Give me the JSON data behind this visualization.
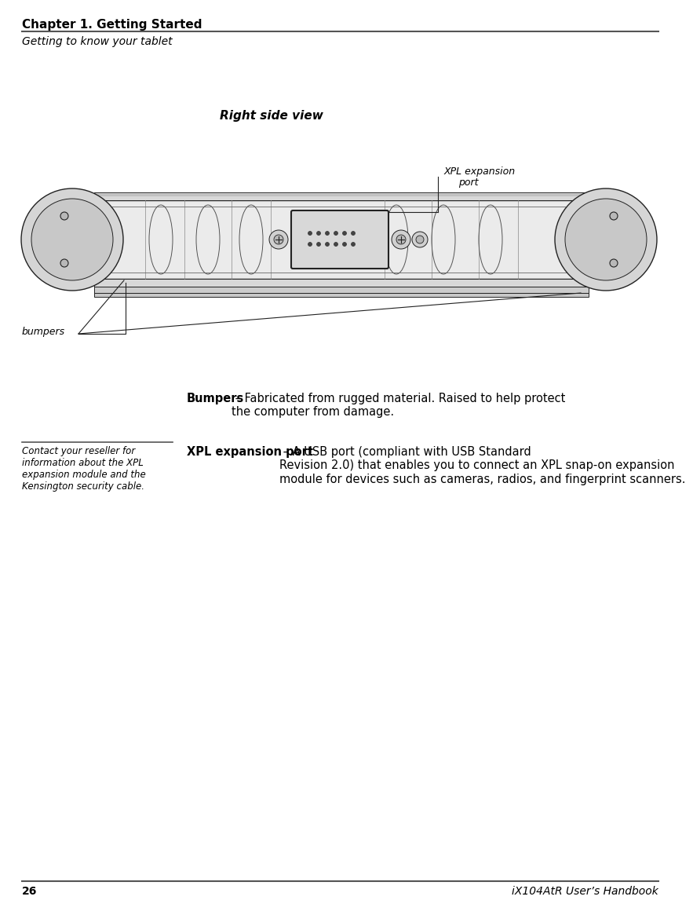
{
  "bg_color": "#ffffff",
  "chapter_title": "Chapter 1. Getting Started",
  "section_title": "Getting to know your tablet",
  "page_number": "26",
  "handbook_title": "iX104AtR User’s Handbook",
  "figure_title": "Right side view",
  "label_xpl_line1": "XPL expansion",
  "label_xpl_line2": "port",
  "label_bumpers": "bumpers",
  "bumpers_desc_bold": "Bumpers",
  "bumpers_desc_rest": " – Fabricated from rugged material. Raised to help protect\nthe computer from damage.",
  "xpl_desc_bold": "XPL expansion port",
  "xpl_desc_rest": " – A USB port (compliant with USB Standard\nRevision 2.0) that enables you to connect an XPL snap-on expansion\nmodule for devices such as cameras, radios, and fingerprint scanners.",
  "sidebar_text": "Contact your reseller for\ninformation about the XPL\nexpansion module and the\nKensington security cable.",
  "text_color": "#000000",
  "edge_color": "#222222",
  "body_fill": "#f0f0f0",
  "shadow_fill": "#c8c8c8"
}
